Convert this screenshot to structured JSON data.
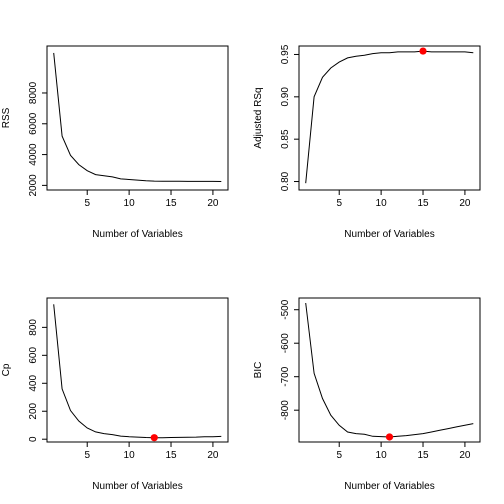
{
  "chart_data": [
    {
      "type": "line",
      "xlabel": "Number of Variables",
      "ylabel": "RSS",
      "xlim": [
        0.2,
        21.8
      ],
      "ylim": [
        1700,
        11050
      ],
      "xticks": [
        5,
        10,
        15,
        20
      ],
      "yticks": [
        2000,
        4000,
        6000,
        8000
      ],
      "x": [
        1,
        2,
        3,
        4,
        5,
        6,
        7,
        8,
        9,
        10,
        11,
        12,
        13,
        14,
        15,
        16,
        17,
        18,
        19,
        20,
        21
      ],
      "y": [
        10600,
        5200,
        3950,
        3350,
        2950,
        2700,
        2630,
        2550,
        2420,
        2380,
        2340,
        2300,
        2280,
        2270,
        2265,
        2262,
        2260,
        2258,
        2257,
        2256,
        2255
      ],
      "highlight": null
    },
    {
      "type": "line",
      "xlabel": "Number of Variables",
      "ylabel": "Adjusted RSq",
      "xlim": [
        0.2,
        21.8
      ],
      "ylim": [
        0.79,
        0.96
      ],
      "xticks": [
        5,
        10,
        15,
        20
      ],
      "yticks": [
        0.8,
        0.85,
        0.9,
        0.95
      ],
      "ytick_labels": [
        "0.80",
        "0.85",
        "0.90",
        "0.95"
      ],
      "x": [
        1,
        2,
        3,
        4,
        5,
        6,
        7,
        8,
        9,
        10,
        11,
        12,
        13,
        14,
        15,
        16,
        17,
        18,
        19,
        20,
        21
      ],
      "y": [
        0.798,
        0.9,
        0.923,
        0.934,
        0.941,
        0.946,
        0.948,
        0.949,
        0.951,
        0.952,
        0.952,
        0.953,
        0.953,
        0.953,
        0.954,
        0.953,
        0.953,
        0.953,
        0.953,
        0.953,
        0.952
      ],
      "highlight": {
        "x": 15,
        "y": 0.954
      }
    },
    {
      "type": "line",
      "xlabel": "Number of Variables",
      "ylabel": "Cp",
      "xlim": [
        0.2,
        21.8
      ],
      "ylim": [
        -20,
        1010
      ],
      "xticks": [
        5,
        10,
        15,
        20
      ],
      "yticks": [
        0,
        200,
        400,
        600,
        800
      ],
      "x": [
        1,
        2,
        3,
        4,
        5,
        6,
        7,
        8,
        9,
        10,
        11,
        12,
        13,
        14,
        15,
        16,
        17,
        18,
        19,
        20,
        21
      ],
      "y": [
        965,
        360,
        205,
        130,
        80,
        52,
        40,
        33,
        22,
        18,
        15,
        12,
        11,
        11,
        12,
        13,
        14,
        15,
        17,
        18,
        20
      ],
      "highlight": {
        "x": 13,
        "y": 11
      }
    },
    {
      "type": "line",
      "xlabel": "Number of Variables",
      "ylabel": "BIC",
      "xlim": [
        0.2,
        21.8
      ],
      "ylim": [
        -895,
        -465
      ],
      "xticks": [
        5,
        10,
        15,
        20
      ],
      "yticks": [
        -800,
        -700,
        -600,
        -500
      ],
      "x": [
        1,
        2,
        3,
        4,
        5,
        6,
        7,
        8,
        9,
        10,
        11,
        12,
        13,
        14,
        15,
        16,
        17,
        18,
        19,
        20,
        21
      ],
      "y": [
        -480,
        -690,
        -765,
        -815,
        -845,
        -865,
        -870,
        -872,
        -878,
        -879,
        -880,
        -878,
        -876,
        -873,
        -870,
        -865,
        -860,
        -855,
        -850,
        -845,
        -840
      ],
      "highlight": {
        "x": 11,
        "y": -880
      }
    }
  ]
}
